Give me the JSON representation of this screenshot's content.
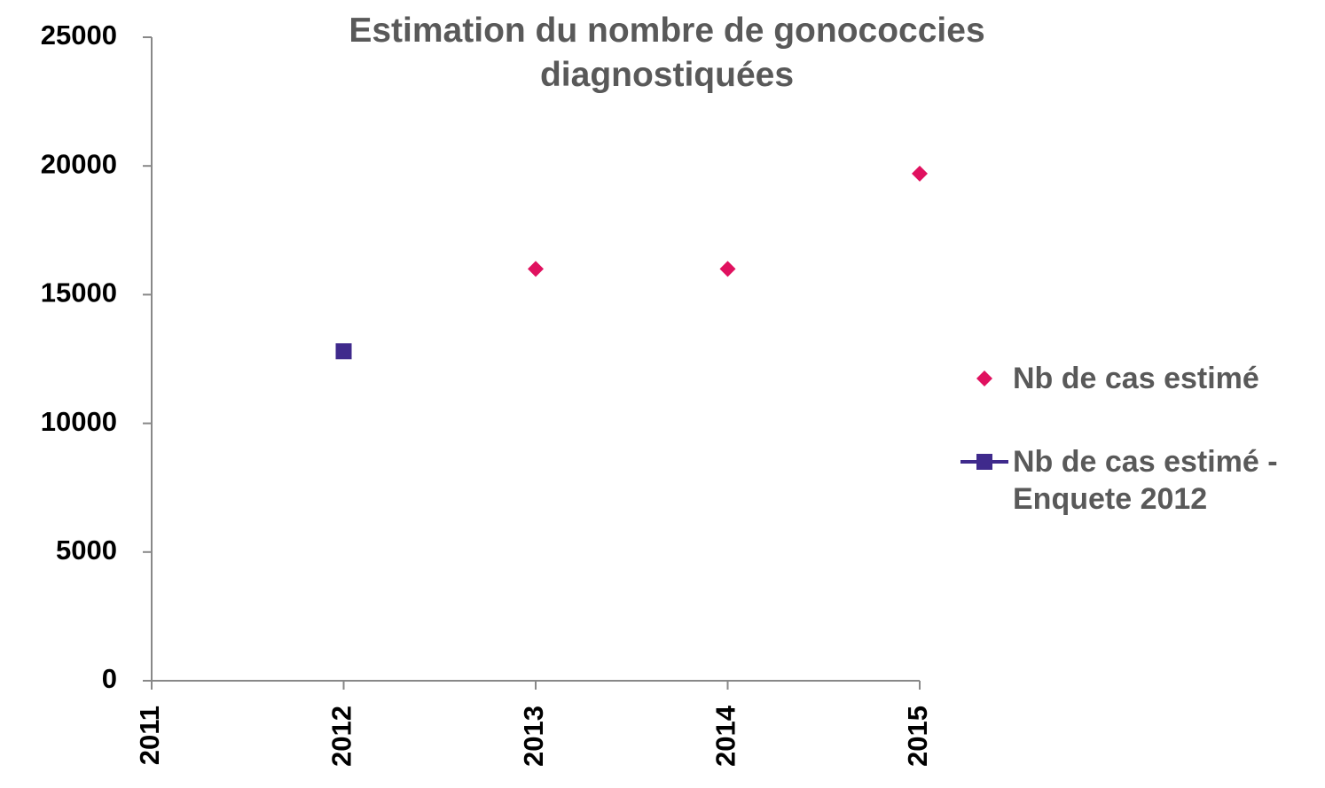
{
  "chart_data": {
    "type": "scatter",
    "title": "Estimation du nombre de gonococcies diagnostiquées",
    "series": [
      {
        "name": "Nb de cas estimé",
        "color": "#e0115f",
        "marker": "diamond",
        "x": [
          2013,
          2014,
          2015
        ],
        "values": [
          16000,
          16000,
          19700
        ]
      },
      {
        "name": "Nb de cas estimé -Enquete 2012",
        "color": "#3f2a8c",
        "marker": "square",
        "x": [
          2012
        ],
        "values": [
          12800
        ]
      }
    ],
    "xlim": [
      2011,
      2015
    ],
    "xticks": [
      2011,
      2012,
      2013,
      2014,
      2015
    ],
    "ylim": [
      0,
      25000
    ],
    "yticks": [
      0,
      5000,
      10000,
      15000,
      20000,
      25000
    ],
    "grid": false,
    "legend": "right"
  }
}
